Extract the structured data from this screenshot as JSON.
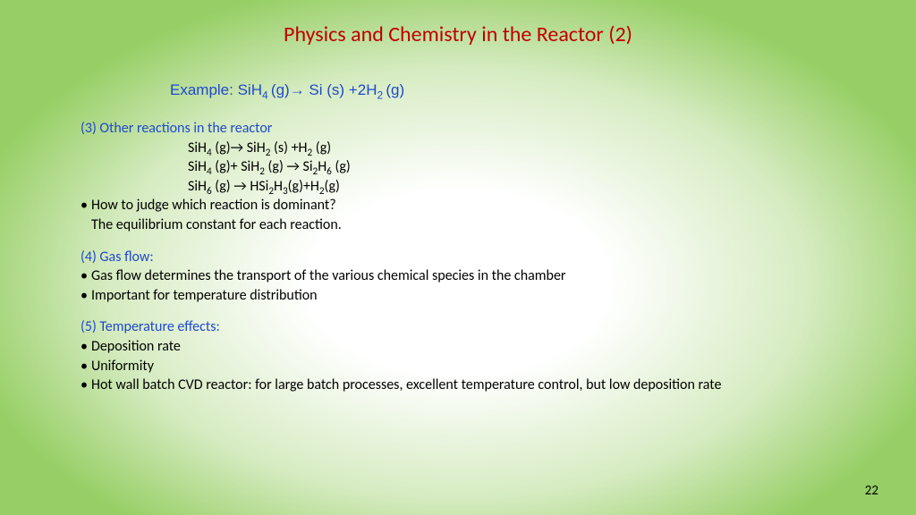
{
  "colors": {
    "title": "#c00000",
    "accent": "#1f49cc",
    "body": "#000000"
  },
  "title": "Physics and Chemistry in the Reactor (2)",
  "example_label": "Example:  ",
  "example_eq": "SiH<sub>4 </sub>(g)→ Si (s) +2H<sub>2 </sub>(g)",
  "sec3_head": "(3) Other reactions in the reactor",
  "eq1": "SiH<sub>4</sub> (g)→ SiH<sub>2</sub> (s) +H<sub>2</sub> (g)",
  "eq2": "SiH<sub>4</sub> (g)+ SiH<sub>2</sub> (g) → Si<sub>2</sub>H<sub>6</sub> (g)",
  "eq3": "SiH<sub>6</sub> (g) → HSi<sub>2</sub>H<sub>3</sub>(g)+H<sub>2</sub>(g)",
  "b1": "How to judge which reaction is dominant?",
  "b1b": "The equilibrium constant for each reaction.",
  "sec4_head": "(4) Gas flow:",
  "b2": "Gas flow determines the transport of the various chemical species in the chamber",
  "b3": "Important for temperature distribution",
  "sec5_head": "(5) Temperature effects:",
  "b4": "Deposition rate",
  "b5": "Uniformity",
  "b6": "Hot wall batch CVD reactor: for large batch processes, excellent temperature control, but low deposition rate",
  "page": "22"
}
